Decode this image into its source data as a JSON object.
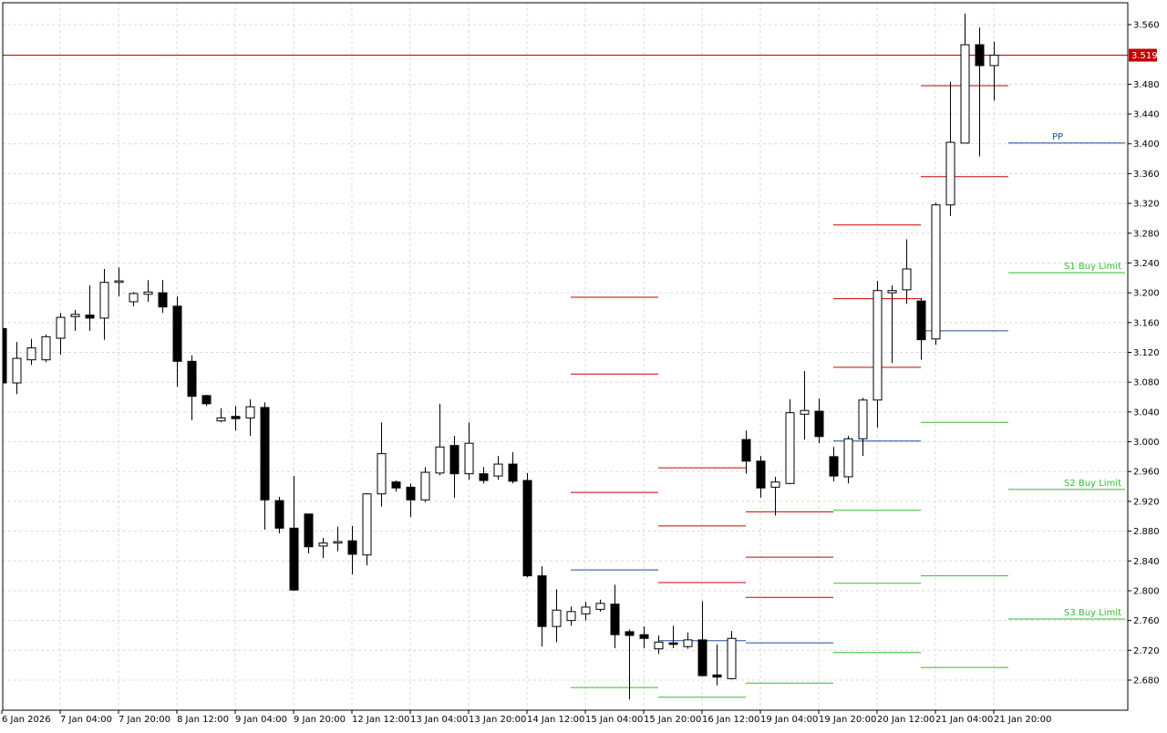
{
  "chart_data": {
    "type": "candlestick",
    "categories": [
      "6 Jan 2026",
      null,
      null,
      null,
      "7 Jan 04:00",
      null,
      null,
      null,
      "7 Jan 20:00",
      null,
      null,
      null,
      "8 Jan 12:00",
      null,
      null,
      null,
      "9 Jan 04:00",
      null,
      null,
      null,
      "9 Jan 20:00",
      null,
      null,
      null,
      "12 Jan 12:00",
      null,
      null,
      null,
      "13 Jan 04:00",
      null,
      null,
      null,
      "13 Jan 20:00",
      null,
      null,
      null,
      "14 Jan 12:00",
      null,
      null,
      null,
      "15 Jan 04:00",
      null,
      null,
      null,
      "15 Jan 20:00",
      null,
      null,
      null,
      "16 Jan 12:00",
      null,
      null,
      null,
      "19 Jan 04:00",
      null,
      null,
      null,
      "19 Jan 20:00",
      null,
      null,
      null,
      "20 Jan 12:00",
      null,
      null,
      null,
      "21 Jan 04:00",
      null,
      null,
      null,
      "21 Jan 20:00"
    ],
    "open": [
      3.152,
      3.079,
      3.11,
      3.11,
      3.139,
      3.168,
      3.17,
      3.166,
      3.214,
      3.188,
      3.198,
      3.2,
      3.182,
      3.108,
      3.062,
      3.028,
      3.034,
      3.032,
      3.046,
      2.921,
      2.884,
      2.903,
      2.86,
      2.864,
      2.867,
      2.848,
      2.93,
      2.946,
      2.939,
      2.922,
      2.958,
      2.995,
      2.957,
      2.957,
      2.954,
      2.97,
      2.948,
      2.82,
      2.752,
      2.76,
      2.769,
      2.775,
      2.782,
      2.745,
      2.741,
      2.722,
      2.73,
      2.725,
      2.734,
      2.687,
      2.682,
      3.003,
      2.974,
      2.939,
      2.944,
      3.037,
      3.041,
      2.98,
      2.953,
      3.004,
      3.056,
      3.2,
      3.204,
      3.189,
      3.138,
      3.318,
      3.401,
      3.533,
      3.505
    ],
    "high": [
      3.157,
      3.134,
      3.138,
      3.144,
      3.173,
      3.177,
      3.21,
      3.232,
      3.234,
      3.201,
      3.217,
      3.217,
      3.195,
      3.116,
      3.063,
      3.045,
      3.048,
      3.057,
      3.053,
      2.926,
      2.954,
      2.903,
      2.871,
      2.886,
      2.887,
      2.931,
      3.026,
      2.948,
      2.944,
      2.966,
      3.051,
      3.008,
      3.026,
      2.966,
      2.981,
      2.986,
      2.958,
      2.833,
      2.802,
      2.779,
      2.785,
      2.788,
      2.808,
      2.748,
      2.752,
      2.74,
      2.753,
      2.744,
      2.786,
      2.728,
      2.746,
      3.015,
      2.981,
      2.953,
      3.057,
      3.095,
      3.058,
      2.993,
      3.008,
      3.059,
      3.216,
      3.21,
      3.272,
      3.193,
      3.321,
      3.483,
      3.575,
      3.556,
      3.537
    ],
    "low": [
      3.077,
      3.064,
      3.103,
      3.107,
      3.117,
      3.149,
      3.149,
      3.137,
      3.195,
      3.182,
      3.188,
      3.173,
      3.074,
      3.029,
      3.048,
      3.026,
      3.015,
      3.008,
      2.882,
      2.877,
      2.8,
      2.85,
      2.844,
      2.853,
      2.822,
      2.834,
      2.913,
      2.933,
      2.899,
      2.919,
      2.955,
      2.925,
      2.949,
      2.944,
      2.949,
      2.944,
      2.818,
      2.725,
      2.731,
      2.753,
      2.76,
      2.772,
      2.723,
      2.654,
      2.723,
      2.715,
      2.723,
      2.722,
      2.685,
      2.673,
      2.681,
      2.957,
      2.925,
      2.901,
      2.943,
      3.003,
      2.998,
      2.947,
      2.944,
      2.981,
      3.019,
      3.106,
      3.185,
      3.11,
      3.13,
      3.303,
      3.401,
      3.383,
      3.458
    ],
    "close": [
      3.079,
      3.112,
      3.126,
      3.141,
      3.167,
      3.171,
      3.166,
      3.214,
      3.216,
      3.199,
      3.201,
      3.181,
      3.108,
      3.061,
      3.051,
      3.032,
      3.031,
      3.047,
      2.922,
      2.884,
      2.801,
      2.859,
      2.864,
      2.866,
      2.849,
      2.93,
      2.984,
      2.938,
      2.922,
      2.959,
      2.993,
      2.957,
      2.998,
      2.948,
      2.97,
      2.947,
      2.82,
      2.752,
      2.774,
      2.772,
      2.778,
      2.783,
      2.741,
      2.74,
      2.736,
      2.731,
      2.728,
      2.734,
      2.686,
      2.684,
      2.736,
      2.974,
      2.938,
      2.946,
      3.039,
      3.042,
      3.007,
      2.954,
      3.004,
      3.056,
      3.203,
      3.203,
      3.232,
      3.137,
      3.318,
      3.402,
      3.533,
      3.505,
      3.519
    ],
    "up_color": "#ffffff",
    "down_color": "#000000",
    "ylim": [
      2.6396,
      3.5894
    ],
    "yticks": [
      {
        "value": 2.68,
        "label": "2.680"
      },
      {
        "value": 2.72,
        "label": "2.720"
      },
      {
        "value": 2.76,
        "label": "2.760"
      },
      {
        "value": 2.8,
        "label": "2.800"
      },
      {
        "value": 2.84,
        "label": "2.840"
      },
      {
        "value": 2.88,
        "label": "2.880"
      },
      {
        "value": 2.92,
        "label": "2.920"
      },
      {
        "value": 2.96,
        "label": "2.960"
      },
      {
        "value": 3.0,
        "label": "3.000"
      },
      {
        "value": 3.04,
        "label": "3.040"
      },
      {
        "value": 3.08,
        "label": "3.080"
      },
      {
        "value": 3.12,
        "label": "3.120"
      },
      {
        "value": 3.16,
        "label": "3.160"
      },
      {
        "value": 3.2,
        "label": "3.200"
      },
      {
        "value": 3.24,
        "label": "3.240"
      },
      {
        "value": 3.28,
        "label": "3.280"
      },
      {
        "value": 3.32,
        "label": "3.320"
      },
      {
        "value": 3.36,
        "label": "3.360"
      },
      {
        "value": 3.4,
        "label": "3.400"
      },
      {
        "value": 3.44,
        "label": "3.440"
      },
      {
        "value": 3.48,
        "label": "3.480"
      },
      {
        "value": 3.56,
        "label": "3.560"
      }
    ],
    "grid": true,
    "last_price": 3.519,
    "last_price_color": "#c00000",
    "levels": [
      {
        "span": [
          39,
          45
        ],
        "value": 3.194,
        "color": "#cc0000"
      },
      {
        "span": [
          39,
          45
        ],
        "value": 3.091,
        "color": "#cc0000"
      },
      {
        "span": [
          39,
          45
        ],
        "value": 2.932,
        "color": "#cc0000"
      },
      {
        "span": [
          39,
          45
        ],
        "value": 2.828,
        "color": "#1f4e9a"
      },
      {
        "span": [
          39,
          45
        ],
        "value": 2.67,
        "color": "#33bb33"
      },
      {
        "span": [
          45,
          51
        ],
        "value": 2.965,
        "color": "#cc0000"
      },
      {
        "span": [
          45,
          51
        ],
        "value": 2.887,
        "color": "#cc0000"
      },
      {
        "span": [
          45,
          51
        ],
        "value": 2.811,
        "color": "#cc0000"
      },
      {
        "span": [
          45,
          51
        ],
        "value": 2.733,
        "color": "#1f4e9a"
      },
      {
        "span": [
          45,
          51
        ],
        "value": 2.657,
        "color": "#33bb33"
      },
      {
        "span": [
          51,
          57
        ],
        "value": 2.906,
        "color": "#cc0000"
      },
      {
        "span": [
          51,
          57
        ],
        "value": 2.845,
        "color": "#cc0000"
      },
      {
        "span": [
          51,
          57
        ],
        "value": 2.791,
        "color": "#cc0000"
      },
      {
        "span": [
          51,
          57
        ],
        "value": 2.73,
        "color": "#1f4e9a"
      },
      {
        "span": [
          51,
          57
        ],
        "value": 2.676,
        "color": "#33bb33"
      },
      {
        "span": [
          57,
          63
        ],
        "value": 3.291,
        "color": "#cc0000"
      },
      {
        "span": [
          57,
          63
        ],
        "value": 3.192,
        "color": "#cc0000"
      },
      {
        "span": [
          57,
          63
        ],
        "value": 3.1,
        "color": "#cc0000"
      },
      {
        "span": [
          57,
          63
        ],
        "value": 3.001,
        "color": "#1f4e9a"
      },
      {
        "span": [
          57,
          63
        ],
        "value": 2.908,
        "color": "#33bb33"
      },
      {
        "span": [
          57,
          63
        ],
        "value": 2.81,
        "color": "#33bb33"
      },
      {
        "span": [
          57,
          63
        ],
        "value": 2.717,
        "color": "#33bb33"
      },
      {
        "span": [
          63,
          69
        ],
        "value": 3.478,
        "color": "#cc0000"
      },
      {
        "span": [
          63,
          69
        ],
        "value": 3.356,
        "color": "#cc0000"
      },
      {
        "span": [
          63,
          69
        ],
        "value": 3.149,
        "color": "#1f4e9a"
      },
      {
        "span": [
          63,
          69
        ],
        "value": 3.026,
        "color": "#33bb33"
      },
      {
        "span": [
          63,
          69
        ],
        "value": 2.82,
        "color": "#33bb33"
      },
      {
        "span": [
          63,
          69
        ],
        "value": 2.697,
        "color": "#33bb33"
      },
      {
        "span": [
          69,
          77
        ],
        "value": 3.401,
        "color": "#1f4e9a",
        "label": "PP"
      },
      {
        "span": [
          69,
          77
        ],
        "value": 3.227,
        "color": "#33bb33",
        "label": "S1 Buy Limit"
      },
      {
        "span": [
          69,
          77
        ],
        "value": 2.936,
        "color": "#33bb33",
        "label": "S2 Buy Limit"
      },
      {
        "span": [
          69,
          77
        ],
        "value": 2.762,
        "color": "#33bb33",
        "label": "S3 Buy Limit"
      }
    ]
  }
}
